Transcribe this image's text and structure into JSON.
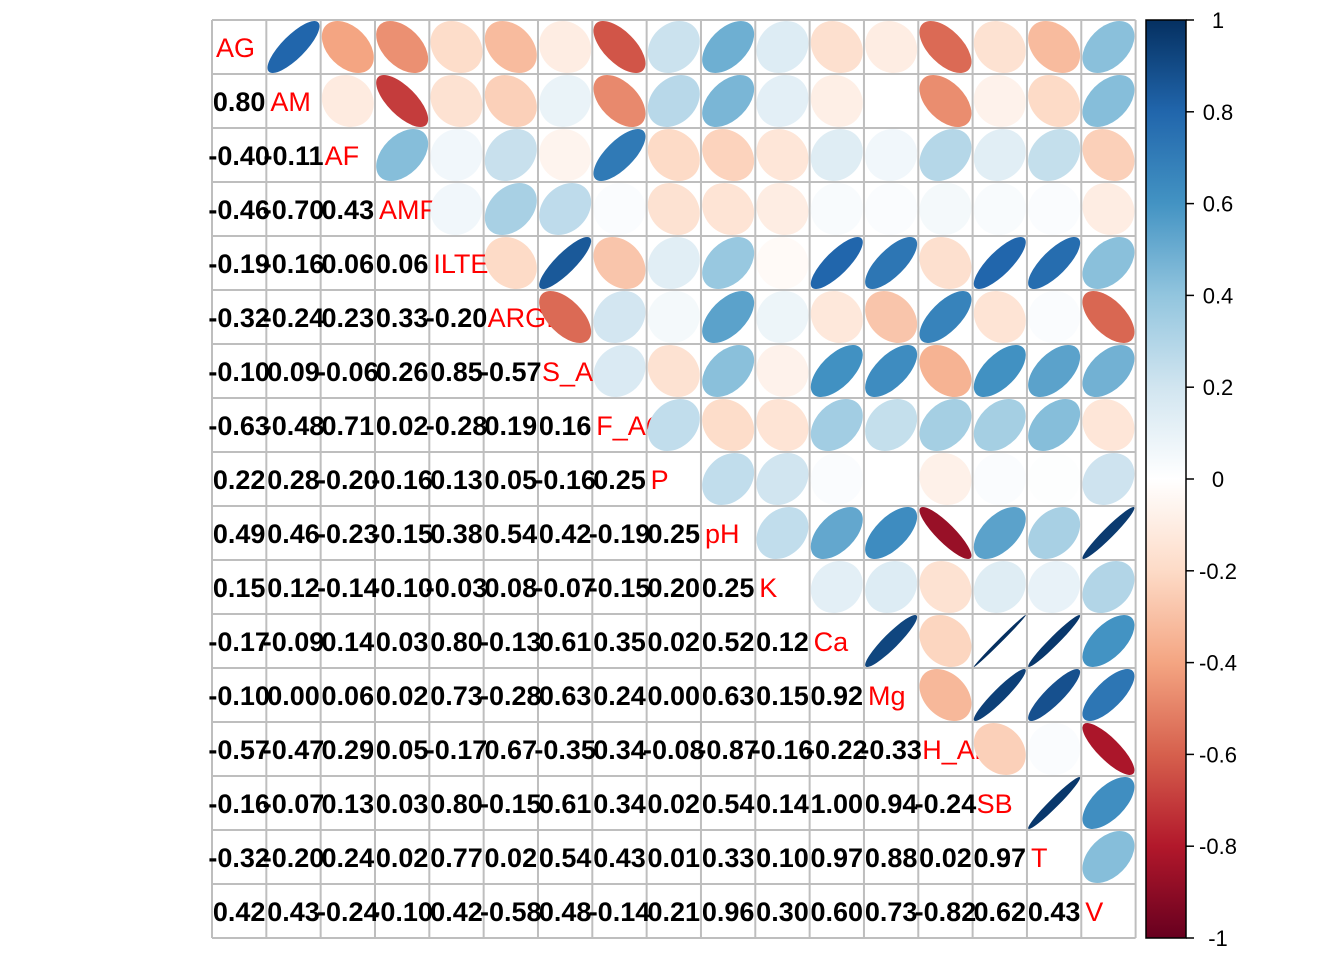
{
  "chart_data": {
    "type": "heatmap",
    "variables": [
      "AG",
      "AM",
      "AF",
      "AMF",
      "ILTE",
      "ARGILA",
      "S_A",
      "F_AG",
      "P",
      "pH",
      "K",
      "Ca",
      "Mg",
      "H_Al",
      "SB",
      "T",
      "V"
    ],
    "lower_labels": [
      [],
      [
        "0.80"
      ],
      [
        "-0.40",
        "-0.11"
      ],
      [
        "-0.46",
        "-0.70",
        "0.43"
      ],
      [
        "-0.19",
        "-0.16",
        "0.06",
        "0.06"
      ],
      [
        "-0.32",
        "-0.24",
        "0.23",
        "0.33",
        "-0.20"
      ],
      [
        "-0.10",
        "0.09",
        "-0.06",
        "0.26",
        "0.85",
        "-0.57"
      ],
      [
        "-0.63",
        "-0.48",
        "0.71",
        "0.02",
        "-0.28",
        "0.19",
        "0.16"
      ],
      [
        "0.22",
        "0.28",
        "-0.20",
        "-0.16",
        "0.13",
        "0.05",
        "-0.16",
        "0.25"
      ],
      [
        "0.49",
        "0.46",
        "-0.23",
        "-0.15",
        "0.38",
        "0.54",
        "0.42",
        "-0.19",
        "0.25"
      ],
      [
        "0.15",
        "0.12",
        "-0.14",
        "-0.10",
        "-0.03",
        "0.08",
        "-0.07",
        "-0.15",
        "0.20",
        "0.25"
      ],
      [
        "-0.17",
        "-0.09",
        "0.14",
        "0.03",
        "0.80",
        "-0.13",
        "0.61",
        "0.35",
        "0.02",
        "0.52",
        "0.12"
      ],
      [
        "-0.10",
        "0.00",
        "0.06",
        "0.02",
        "0.73",
        "-0.28",
        "0.63",
        "0.24",
        "0.00",
        "0.63",
        "0.15",
        "0.92"
      ],
      [
        "-0.57",
        "-0.47",
        "0.29",
        "0.05",
        "-0.17",
        "0.67",
        "-0.35",
        "0.34",
        "-0.08",
        "-0.87",
        "-0.16",
        "-0.22",
        "-0.33"
      ],
      [
        "-0.16",
        "-0.07",
        "0.13",
        "0.03",
        "0.80",
        "-0.15",
        "0.61",
        "0.34",
        "0.02",
        "0.54",
        "0.14",
        "1.00",
        "0.94",
        "-0.24"
      ],
      [
        "-0.32",
        "-0.20",
        "0.24",
        "0.02",
        "0.77",
        "0.02",
        "0.54",
        "0.43",
        "0.01",
        "0.33",
        "0.10",
        "0.97",
        "0.88",
        "0.02",
        "0.97"
      ],
      [
        "0.42",
        "0.43",
        "-0.24",
        "-0.10",
        "0.42",
        "-0.58",
        "0.48",
        "-0.14",
        "0.21",
        "0.96",
        "0.30",
        "0.60",
        "0.73",
        "-0.82",
        "0.62",
        "0.43"
      ]
    ],
    "colorbar": {
      "min": -1,
      "max": 1,
      "tick_labels": [
        "1",
        "0.8",
        "0.6",
        "0.4",
        "0.2",
        "0",
        "-0.2",
        "-0.4",
        "-0.6",
        "-0.8",
        "-1"
      ],
      "palette": [
        "#67001f",
        "#b2182b",
        "#d6604d",
        "#f4a582",
        "#fddbc7",
        "#ffffff",
        "#d1e5f0",
        "#92c5de",
        "#4393c3",
        "#2166ac",
        "#053061"
      ]
    },
    "upper_method": "ellipse",
    "lower_method": "number",
    "diagonal": "variable names",
    "label_color": "#ff0000",
    "grid": true
  }
}
